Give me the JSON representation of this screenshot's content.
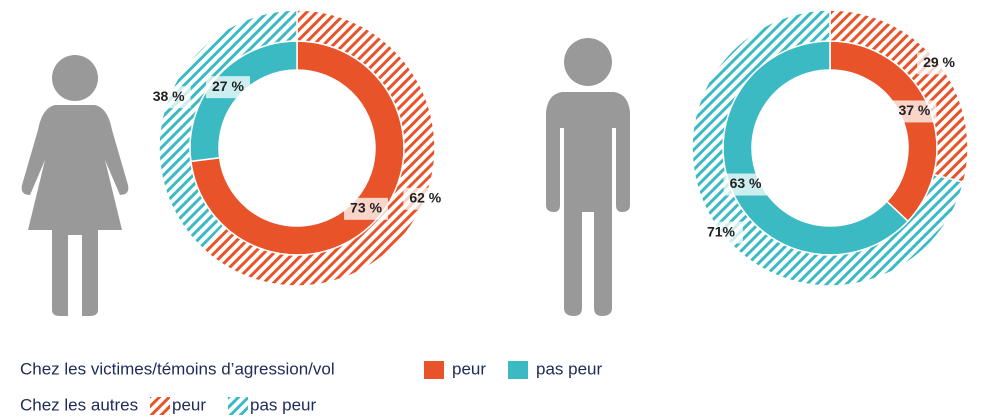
{
  "chart_data": [
    {
      "type": "pie",
      "colors": [
        "#e8532a",
        "#3bbac4"
      ],
      "series": [
        {
          "values": [
            73,
            27
          ],
          "value_labels": [
            "73 %",
            "27 %"
          ]
        },
        {
          "values": [
            62,
            38
          ],
          "value_labels": [
            "62 %",
            "38 %"
          ]
        }
      ]
    },
    {
      "type": "pie",
      "colors": [
        "#e8532a",
        "#3bbac4"
      ],
      "series": [
        {
          "values": [
            37,
            63
          ],
          "value_labels": [
            "37 %",
            "63 %"
          ]
        },
        {
          "values": [
            29,
            71
          ],
          "value_labels": [
            "29 %",
            "71%"
          ]
        }
      ]
    }
  ],
  "legend": {
    "categories": [
      "peur",
      "pas peur"
    ],
    "groups": [
      "Chez les victimes/témoins d’agression/vol",
      "Chez les autres"
    ]
  }
}
